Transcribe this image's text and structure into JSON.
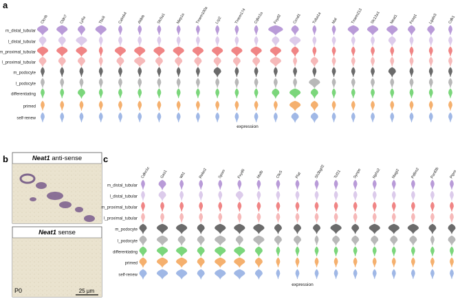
{
  "panels": [
    {
      "label": "a",
      "xlabel": "expression",
      "genes": [
        "Clcnb",
        "Cldn7",
        "Ly6a",
        "Tbc8",
        "Calmk4",
        "Aldob",
        "Slc5a1",
        "Mep1a",
        "Tmem100a",
        "Lrp2",
        "Tmem174",
        "Cdkn1a",
        "Fxyd2",
        "Ccnd1",
        "Tuba1a",
        "Mal",
        "Tmem213",
        "Slc12a1",
        "Neat1",
        "Foxq1",
        "Lgals3",
        "Cdk1"
      ],
      "cell_types": [
        "m_distal_tubular",
        "l_distal_tubular",
        "m_proximal_tubular",
        "l_proximal_tubular",
        "m_podocyte",
        "l_podocyte",
        "differentiating",
        "primed",
        "self-renew"
      ],
      "colors": [
        "#b99bd8",
        "#dccbeb",
        "#f08585",
        "#f6b9b9",
        "#6b6b6b",
        "#b8b8b8",
        "#7bd67b",
        "#f5b06e",
        "#a0b8e6"
      ],
      "levels": [
        [
          3,
          3,
          2,
          3,
          1,
          1,
          1,
          1,
          1,
          1,
          1,
          1,
          4,
          2,
          1,
          1,
          3,
          3,
          3,
          2,
          2,
          1
        ],
        [
          2,
          2,
          3,
          1,
          1,
          1,
          1,
          1,
          1,
          1,
          1,
          1,
          2,
          3,
          1,
          1,
          1,
          1,
          2,
          1,
          1,
          1
        ],
        [
          3,
          3,
          3,
          1,
          3,
          3,
          3,
          3,
          3,
          3,
          3,
          3,
          3,
          2,
          1,
          1,
          1,
          1,
          1,
          1,
          1,
          1
        ],
        [
          2,
          2,
          2,
          1,
          2,
          3,
          2,
          2,
          2,
          2,
          2,
          2,
          3,
          1,
          2,
          1,
          1,
          1,
          1,
          1,
          1,
          1
        ],
        [
          1,
          1,
          1,
          1,
          1,
          1,
          1,
          1,
          1,
          2,
          1,
          1,
          1,
          1,
          1,
          1,
          1,
          1,
          2,
          1,
          1,
          1
        ],
        [
          1,
          1,
          1,
          1,
          1,
          1,
          1,
          1,
          1,
          1,
          1,
          1,
          1,
          1,
          3,
          1,
          1,
          1,
          1,
          1,
          1,
          1
        ],
        [
          1,
          1,
          2,
          1,
          1,
          1,
          1,
          1,
          1,
          1,
          1,
          1,
          2,
          3,
          2,
          1,
          1,
          1,
          1,
          1,
          1,
          1
        ],
        [
          1,
          1,
          1,
          1,
          1,
          1,
          1,
          1,
          1,
          1,
          1,
          1,
          1,
          3,
          2,
          1,
          1,
          1,
          1,
          1,
          1,
          1
        ],
        [
          1,
          1,
          1,
          1,
          1,
          1,
          1,
          1,
          1,
          1,
          1,
          1,
          1,
          2,
          2,
          1,
          1,
          1,
          1,
          1,
          1,
          1
        ]
      ]
    },
    {
      "label": "c",
      "xlabel": "expression",
      "genes": [
        "Cdkn1c",
        "Gas1",
        "Wt1",
        "Robo2",
        "Sparc",
        "Fxyd6",
        "Mafb",
        "Clic5",
        "Plat",
        "Sh3bgrl2",
        "Tcf21",
        "Synpo",
        "Nphs2",
        "Magi2",
        "Pdlim2",
        "Pard3b",
        "Ptpro"
      ],
      "cell_types": [
        "m_distal_tubular",
        "l_distal_tubular",
        "m_proximal_tubular",
        "l_proximal_tubular",
        "m_podocyte",
        "l_podocyte",
        "differentiating",
        "primed",
        "self-renew"
      ],
      "colors": [
        "#b99bd8",
        "#dccbeb",
        "#f08585",
        "#f6b9b9",
        "#6b6b6b",
        "#b8b8b8",
        "#7bd67b",
        "#f5b06e",
        "#a0b8e6"
      ],
      "levels": [
        [
          1,
          2,
          1,
          1,
          1,
          1,
          1,
          1,
          1,
          1,
          1,
          1,
          1,
          1,
          1,
          1,
          1
        ],
        [
          1,
          2,
          1,
          1,
          1,
          2,
          1,
          1,
          1,
          1,
          1,
          1,
          1,
          1,
          1,
          1,
          1
        ],
        [
          1,
          1,
          1,
          1,
          1,
          1,
          1,
          1,
          1,
          1,
          1,
          1,
          1,
          1,
          1,
          1,
          1
        ],
        [
          1,
          1,
          1,
          1,
          1,
          1,
          1,
          1,
          1,
          1,
          1,
          1,
          1,
          1,
          1,
          1,
          1
        ],
        [
          2,
          3,
          3,
          2,
          3,
          3,
          3,
          2,
          2,
          2,
          3,
          2,
          3,
          3,
          3,
          2,
          2
        ],
        [
          2,
          3,
          2,
          2,
          3,
          2,
          3,
          2,
          2,
          1,
          2,
          2,
          2,
          2,
          2,
          1,
          2
        ],
        [
          2,
          3,
          3,
          2,
          3,
          3,
          2,
          1,
          1,
          1,
          1,
          1,
          1,
          1,
          1,
          1,
          1
        ],
        [
          2,
          3,
          3,
          2,
          3,
          3,
          2,
          1,
          1,
          1,
          1,
          1,
          1,
          1,
          1,
          1,
          1
        ],
        [
          2,
          3,
          3,
          2,
          3,
          3,
          2,
          1,
          1,
          1,
          1,
          1,
          1,
          1,
          1,
          1,
          1
        ]
      ]
    }
  ],
  "panel_b": {
    "label": "b",
    "images": [
      {
        "gene": "Neat1",
        "probe": " anti-sense"
      },
      {
        "gene": "Neat1",
        "probe": " sense"
      }
    ],
    "stage": "P0",
    "scale_bar": "25 µm"
  }
}
